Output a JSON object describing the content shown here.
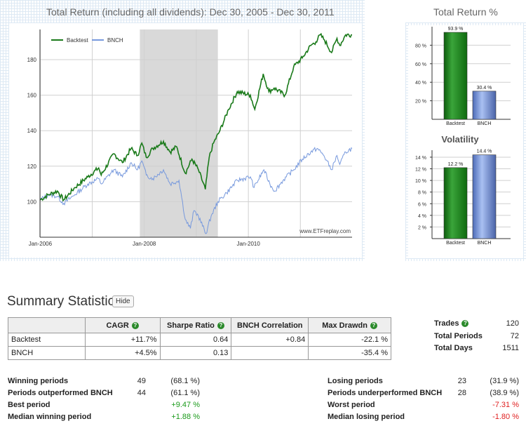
{
  "main_chart": {
    "title": "Total Return (including all dividends): Dec 30, 2005 - Dec 30, 2011",
    "watermark": "www.ETFreplay.com",
    "legend": [
      "Backtest",
      "BNCH"
    ],
    "colors": {
      "Backtest": "#1a7a1a",
      "BNCH": "#7799dd",
      "shade": "#d9d9d9"
    }
  },
  "side_chart": {
    "total_return_title": "Total Return %",
    "volatility_title": "Volatility"
  },
  "chart_data": [
    {
      "type": "line",
      "title": "Total Return (including all dividends): Dec 30, 2005 - Dec 30, 2011",
      "x_tick_labels": [
        "Jan-2006",
        "Jan-2008",
        "Jan-2010"
      ],
      "y_ticks": [
        100,
        120,
        140,
        160,
        180
      ],
      "ylim": [
        80,
        197
      ],
      "xlim": [
        "2005-12-30",
        "2011-12-30"
      ],
      "grid": true,
      "legend_position": "top-left",
      "shaded_region": [
        "2007-12-01",
        "2009-06-01"
      ],
      "series": [
        {
          "name": "Backtest",
          "points": [
            [
              "2005-12-30",
              101
            ],
            [
              "2006-03-01",
              104
            ],
            [
              "2006-05-01",
              106
            ],
            [
              "2006-06-15",
              101
            ],
            [
              "2006-09-01",
              108
            ],
            [
              "2006-12-01",
              114
            ],
            [
              "2007-02-15",
              119
            ],
            [
              "2007-03-05",
              115
            ],
            [
              "2007-06-01",
              127
            ],
            [
              "2007-08-01",
              122
            ],
            [
              "2007-10-01",
              130
            ],
            [
              "2007-11-15",
              126
            ],
            [
              "2007-12-15",
              133
            ],
            [
              "2008-01-15",
              125
            ],
            [
              "2008-03-01",
              130
            ],
            [
              "2008-05-15",
              134
            ],
            [
              "2008-07-01",
              128
            ],
            [
              "2008-08-15",
              131
            ],
            [
              "2008-10-15",
              116
            ],
            [
              "2008-12-01",
              124
            ],
            [
              "2009-01-15",
              118
            ],
            [
              "2009-03-05",
              107
            ],
            [
              "2009-04-01",
              125
            ],
            [
              "2009-05-01",
              133
            ],
            [
              "2009-06-15",
              140
            ],
            [
              "2009-08-15",
              152
            ],
            [
              "2009-10-15",
              162
            ],
            [
              "2010-01-15",
              160
            ],
            [
              "2010-02-15",
              152
            ],
            [
              "2010-04-15",
              172
            ],
            [
              "2010-05-25",
              162
            ],
            [
              "2010-07-01",
              164
            ],
            [
              "2010-09-15",
              160
            ],
            [
              "2010-11-15",
              176
            ],
            [
              "2011-01-15",
              181
            ],
            [
              "2011-03-15",
              188
            ],
            [
              "2011-04-20",
              190
            ],
            [
              "2011-05-20",
              194
            ],
            [
              "2011-06-20",
              191
            ],
            [
              "2011-08-08",
              184
            ],
            [
              "2011-09-15",
              192
            ],
            [
              "2011-10-05",
              188
            ],
            [
              "2011-11-15",
              194
            ],
            [
              "2011-12-30",
              194
            ]
          ]
        },
        {
          "name": "BNCH",
          "points": [
            [
              "2005-12-30",
              101
            ],
            [
              "2006-03-01",
              104
            ],
            [
              "2006-05-01",
              103
            ],
            [
              "2006-06-15",
              99
            ],
            [
              "2006-09-01",
              104
            ],
            [
              "2006-12-01",
              110
            ],
            [
              "2007-02-15",
              113
            ],
            [
              "2007-03-05",
              110
            ],
            [
              "2007-06-01",
              118
            ],
            [
              "2007-08-01",
              114
            ],
            [
              "2007-10-01",
              122
            ],
            [
              "2007-11-15",
              118
            ],
            [
              "2007-12-15",
              123
            ],
            [
              "2008-01-15",
              115
            ],
            [
              "2008-03-01",
              113
            ],
            [
              "2008-05-15",
              118
            ],
            [
              "2008-07-01",
              110
            ],
            [
              "2008-09-01",
              112
            ],
            [
              "2008-10-15",
              90
            ],
            [
              "2008-11-20",
              85
            ],
            [
              "2008-12-15",
              95
            ],
            [
              "2009-01-15",
              92
            ],
            [
              "2009-03-09",
              82
            ],
            [
              "2009-04-15",
              92
            ],
            [
              "2009-06-01",
              100
            ],
            [
              "2009-08-01",
              105
            ],
            [
              "2009-10-15",
              112
            ],
            [
              "2010-01-15",
              114
            ],
            [
              "2010-02-10",
              108
            ],
            [
              "2010-04-20",
              118
            ],
            [
              "2010-06-01",
              110
            ],
            [
              "2010-07-05",
              106
            ],
            [
              "2010-09-01",
              112
            ],
            [
              "2010-11-15",
              118
            ],
            [
              "2011-01-15",
              124
            ],
            [
              "2011-03-15",
              128
            ],
            [
              "2011-04-29",
              130
            ],
            [
              "2011-06-15",
              126
            ],
            [
              "2011-08-08",
              118
            ],
            [
              "2011-09-15",
              126
            ],
            [
              "2011-10-05",
              121
            ],
            [
              "2011-11-15",
              128
            ],
            [
              "2011-12-30",
              130
            ]
          ]
        }
      ]
    },
    {
      "type": "bar",
      "title": "Total Return %",
      "categories": [
        "Backtest",
        "BNCH"
      ],
      "values": [
        93.9,
        30.4
      ],
      "value_labels": [
        "93.9 %",
        "30.4 %"
      ],
      "y_tick_labels": [
        "20 %",
        "40 %",
        "60 %",
        "80 %"
      ],
      "y_ticks": [
        20,
        40,
        60,
        80
      ],
      "ylim": [
        0,
        100
      ],
      "grid": true
    },
    {
      "type": "bar",
      "title": "Volatility",
      "categories": [
        "Backtest",
        "BNCH"
      ],
      "values": [
        12.2,
        14.4
      ],
      "value_labels": [
        "12.2 %",
        "14.4 %"
      ],
      "y_tick_labels": [
        "2 %",
        "4 %",
        "6 %",
        "8 %",
        "10 %",
        "12 %",
        "14 %"
      ],
      "y_ticks": [
        2,
        4,
        6,
        8,
        10,
        12,
        14
      ],
      "ylim": [
        0,
        15.2
      ],
      "grid": true
    }
  ],
  "summary": {
    "title": "Summary Statistics",
    "hide_label": "Hide",
    "help_icon": "question-icon",
    "table": {
      "headers": [
        "",
        "CAGR",
        "Sharpe Ratio",
        "BNCH Correlation",
        "Max Drawdn"
      ],
      "rows": [
        [
          "Backtest",
          "+11.7%",
          "0.64",
          "+0.84",
          "-22.1 %"
        ],
        [
          "BNCH",
          "+4.5%",
          "0.13",
          "",
          "-35.4 %"
        ]
      ]
    },
    "trades_label": "Trades",
    "trades_value": "120",
    "total_periods_label": "Total Periods",
    "total_periods_value": "72",
    "total_days_label": "Total Days",
    "total_days_value": "1511",
    "left_stats": [
      {
        "label": "Winning periods",
        "count": "49",
        "value": "(68.1 %)"
      },
      {
        "label": "Periods outperformed BNCH",
        "count": "44",
        "value": "(61.1 %)"
      },
      {
        "label": "Best period",
        "count": "",
        "value": "+9.47 %"
      },
      {
        "label": "Median winning period",
        "count": "",
        "value": "+1.88 %"
      }
    ],
    "right_stats": [
      {
        "label": "Losing periods",
        "count": "23",
        "value": "(31.9 %)"
      },
      {
        "label": "Periods underperformed BNCH",
        "count": "28",
        "value": "(38.9 %)"
      },
      {
        "label": "Worst period",
        "count": "",
        "value": "-7.31 %"
      },
      {
        "label": "Median losing period",
        "count": "",
        "value": "-1.80 %"
      }
    ]
  }
}
